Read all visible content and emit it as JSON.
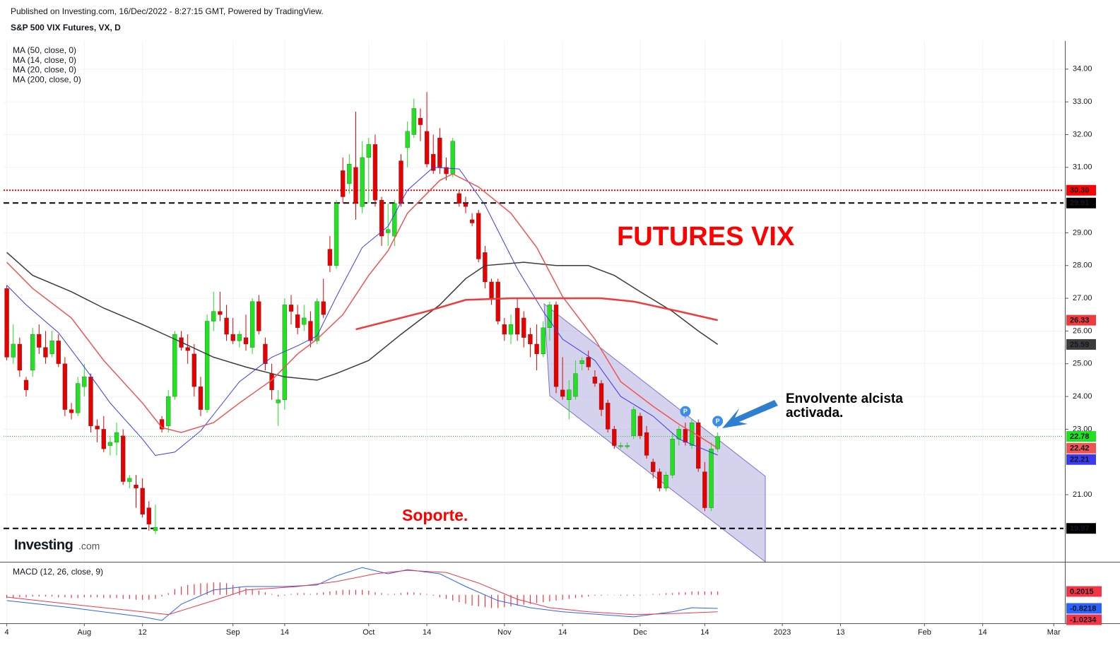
{
  "header": {
    "published": "Published on Investing.com, 16/Dec/2022 - 8:27:15 GMT, Powered by TradingView.",
    "logo": "Investing",
    "logo_suffix": ".com"
  },
  "chart_data": [
    {
      "type": "candlestick",
      "title": "S&P 500 VIX Futures, VX, D",
      "xlim": [
        -0.5,
        163.5
      ],
      "xticks": [
        {
          "value": 0,
          "label": "4"
        },
        {
          "value": 12,
          "label": "Aug"
        },
        {
          "value": 21,
          "label": "12"
        },
        {
          "value": 35,
          "label": "Sep"
        },
        {
          "value": 43,
          "label": "14"
        },
        {
          "value": 56,
          "label": "Oct"
        },
        {
          "value": 65,
          "label": "14"
        },
        {
          "value": 77,
          "label": "Nov"
        },
        {
          "value": 86,
          "label": "14"
        },
        {
          "value": 98,
          "label": "Dec"
        },
        {
          "value": 108,
          "label": "14"
        },
        {
          "value": 120,
          "label": "2023"
        },
        {
          "value": 129,
          "label": "13"
        },
        {
          "value": 142,
          "label": "Feb"
        },
        {
          "value": 151,
          "label": "14"
        },
        {
          "value": 162,
          "label": "Mar"
        }
      ],
      "ylim": [
        18.95,
        34.86
      ],
      "yticks": [
        {
          "value": 21,
          "label": "21.00"
        },
        {
          "value": 23,
          "label": "23.00"
        },
        {
          "value": 24,
          "label": "24.00"
        },
        {
          "value": 25,
          "label": "25.00"
        },
        {
          "value": 26,
          "label": "26.00"
        },
        {
          "value": 27,
          "label": "27.00"
        },
        {
          "value": 28,
          "label": "28.00"
        },
        {
          "value": 29,
          "label": "29.00"
        },
        {
          "value": 31,
          "label": "31.00"
        },
        {
          "value": 32,
          "label": "32.00"
        },
        {
          "value": 33,
          "label": "33.00"
        },
        {
          "value": 34,
          "label": "34.00"
        }
      ],
      "grid": true,
      "up_color": "#1ee31e",
      "down_color": "#e60000",
      "last_line_color": "#22bb22",
      "candles": {
        "open": [
          27.3,
          25.2,
          25.6,
          24.5,
          24.8,
          25.9,
          25.5,
          25.3,
          25.7,
          25.0,
          23.6,
          23.5,
          24.3,
          24.6,
          23.1,
          23.0,
          22.5,
          22.6,
          22.8,
          21.4,
          21.3,
          21.2,
          20.6,
          19.9,
          23.3,
          23.1,
          24.0,
          25.8,
          25.5,
          25.3,
          24.3,
          23.6,
          26.3,
          26.6,
          26.4,
          25.9,
          25.7,
          25.8,
          25.5,
          26.9,
          25.6,
          24.7,
          23.8,
          23.9,
          26.8,
          26.5,
          26.2,
          26.3,
          25.7,
          26.9,
          28.5,
          28.0,
          30.9,
          30.5,
          31.0,
          29.8,
          31.3,
          31.7,
          30.0,
          29.0,
          28.9,
          31.2,
          31.6,
          32.0,
          32.5,
          32.1,
          31.4,
          31.9,
          31.0,
          30.8,
          30.2,
          29.9,
          29.4,
          29.6,
          28.4,
          27.5,
          27.5,
          26.2,
          25.9,
          26.7,
          26.4,
          25.9,
          25.6,
          25.3,
          26.1,
          26.8,
          24.2,
          23.9,
          24.0,
          25.0,
          25.2,
          24.6,
          24.4,
          23.8,
          23.0,
          22.5,
          22.5,
          22.8,
          23.4,
          22.9,
          22.0,
          21.7,
          21.2,
          21.6,
          22.7,
          23.0,
          22.5,
          23.2,
          21.7,
          20.6,
          22.4
        ],
        "high": [
          27.4,
          26.2,
          25.8,
          24.6,
          26.1,
          26.2,
          26.0,
          26.0,
          25.9,
          25.2,
          23.8,
          24.6,
          25.0,
          24.7,
          23.3,
          23.4,
          22.8,
          23.2,
          23.0,
          21.6,
          21.6,
          21.5,
          20.8,
          20.7,
          23.4,
          24.2,
          26.0,
          26.0,
          25.9,
          25.6,
          24.6,
          26.5,
          27.2,
          27.2,
          26.8,
          26.4,
          26.0,
          26.5,
          27.0,
          27.1,
          25.8,
          25.0,
          24.2,
          27.0,
          27.1,
          26.8,
          26.8,
          26.6,
          27.0,
          27.6,
          28.9,
          30.0,
          31.3,
          31.4,
          32.7,
          31.8,
          31.9,
          32.0,
          30.1,
          29.9,
          30.0,
          31.4,
          32.4,
          33.1,
          32.8,
          33.3,
          32.0,
          32.2,
          31.3,
          31.9,
          30.3,
          30.1,
          29.6,
          29.7,
          28.6,
          27.6,
          27.6,
          26.4,
          26.5,
          27.0,
          26.6,
          26.1,
          26.2,
          26.3,
          26.9,
          26.9,
          25.2,
          24.5,
          25.1,
          25.2,
          25.4,
          24.8,
          24.5,
          23.9,
          23.1,
          22.6,
          22.6,
          23.7,
          23.5,
          23.1,
          22.1,
          21.8,
          21.7,
          22.9,
          23.1,
          23.2,
          23.3,
          23.3,
          22.0,
          22.6,
          22.9
        ],
        "low": [
          25.1,
          25.0,
          24.6,
          24.0,
          24.6,
          25.3,
          25.0,
          25.2,
          24.9,
          23.4,
          23.3,
          23.4,
          24.0,
          22.9,
          22.6,
          22.3,
          22.2,
          22.2,
          21.3,
          21.2,
          20.6,
          20.3,
          19.9,
          19.8,
          22.9,
          22.9,
          23.9,
          25.4,
          25.0,
          24.0,
          23.4,
          23.5,
          26.0,
          26.3,
          25.7,
          25.6,
          25.5,
          25.4,
          25.3,
          25.9,
          24.8,
          23.9,
          23.1,
          23.6,
          26.2,
          25.9,
          26.0,
          25.5,
          25.6,
          26.4,
          27.8,
          27.9,
          29.9,
          30.2,
          29.4,
          29.6,
          29.9,
          29.8,
          28.6,
          28.6,
          28.6,
          29.8,
          31.0,
          31.9,
          31.8,
          31.0,
          30.8,
          30.8,
          30.6,
          30.7,
          29.8,
          29.6,
          29.2,
          28.1,
          27.3,
          26.8,
          26.2,
          25.7,
          25.6,
          25.7,
          25.5,
          25.2,
          24.8,
          25.2,
          25.7,
          24.1,
          23.9,
          23.3,
          23.9,
          24.8,
          24.8,
          24.3,
          23.4,
          22.9,
          22.4,
          22.4,
          22.4,
          22.7,
          22.7,
          22.1,
          21.5,
          21.1,
          21.1,
          21.5,
          22.5,
          22.5,
          22.4,
          21.7,
          20.5,
          20.5,
          22.3
        ],
        "close": [
          25.2,
          25.6,
          24.8,
          24.2,
          25.9,
          25.5,
          25.2,
          25.7,
          25.0,
          23.6,
          23.5,
          24.4,
          24.6,
          23.1,
          23.0,
          22.4,
          22.6,
          22.9,
          21.4,
          21.5,
          21.2,
          20.4,
          20.1,
          20.0,
          23.0,
          24.0,
          25.9,
          25.5,
          25.4,
          24.3,
          23.6,
          26.3,
          26.6,
          26.5,
          25.9,
          25.7,
          25.9,
          25.6,
          26.9,
          26.0,
          25.0,
          24.2,
          23.9,
          26.8,
          26.6,
          26.1,
          26.4,
          25.7,
          26.9,
          26.5,
          28.0,
          29.9,
          30.1,
          31.1,
          29.9,
          31.3,
          31.7,
          30.0,
          28.9,
          29.1,
          29.9,
          29.9,
          32.1,
          32.8,
          32.3,
          31.1,
          30.9,
          31.0,
          30.8,
          31.8,
          29.9,
          29.8,
          29.3,
          28.2,
          27.5,
          27.0,
          26.3,
          25.9,
          26.2,
          25.9,
          25.8,
          25.6,
          25.3,
          26.1,
          26.8,
          24.3,
          24.0,
          24.2,
          24.7,
          25.1,
          24.9,
          24.4,
          23.6,
          23.0,
          22.5,
          22.5,
          22.5,
          23.6,
          22.8,
          22.2,
          21.7,
          21.2,
          21.6,
          22.7,
          23.0,
          22.6,
          23.2,
          21.8,
          20.6,
          22.4,
          22.78
        ]
      },
      "series": [
        {
          "name": "MA (50, close, 0)",
          "color": "#3c3c3c",
          "width": 1.5,
          "x": [
            0,
            4,
            10,
            15,
            21,
            26,
            32,
            37,
            43,
            48,
            51,
            56,
            61,
            67,
            71,
            74,
            80,
            85,
            90,
            94,
            98,
            103,
            107,
            110
          ],
          "values": [
            28.4,
            27.7,
            27.2,
            26.7,
            26.2,
            25.75,
            25.2,
            24.9,
            24.6,
            24.5,
            24.7,
            25.1,
            25.9,
            26.8,
            27.6,
            28.0,
            28.1,
            28.0,
            28.0,
            27.7,
            27.2,
            26.6,
            26.0,
            25.59
          ]
        },
        {
          "name": "MA (14, close, 0)",
          "color": "#3a3af0",
          "width": 1,
          "x": [
            0,
            3,
            8,
            12,
            16,
            21,
            23,
            26,
            30,
            33,
            36,
            41,
            45,
            48,
            51,
            55,
            59,
            62,
            66,
            70,
            74,
            79,
            83,
            86,
            91,
            95,
            100,
            104,
            110
          ],
          "values": [
            27.4,
            26.8,
            25.95,
            24.9,
            23.8,
            22.7,
            22.2,
            22.3,
            22.95,
            23.7,
            24.45,
            25.2,
            25.55,
            25.85,
            27.05,
            28.55,
            29.2,
            30.3,
            31.0,
            30.95,
            29.85,
            27.9,
            26.6,
            25.75,
            25.1,
            24.0,
            23.4,
            22.7,
            22.21
          ]
        },
        {
          "name": "MA (20, close, 0)",
          "color": "#f05454",
          "width": 1.5,
          "x": [
            0,
            4,
            10,
            15,
            21,
            24,
            27,
            32,
            36,
            41,
            45,
            48,
            52,
            56,
            59,
            62,
            67,
            69,
            73,
            78,
            82,
            86,
            91,
            95,
            100,
            104,
            107,
            110
          ],
          "values": [
            28.1,
            27.3,
            26.4,
            25.1,
            23.8,
            23.05,
            22.9,
            23.2,
            23.8,
            24.5,
            25.3,
            25.75,
            26.5,
            27.7,
            28.45,
            29.6,
            30.6,
            30.8,
            30.4,
            29.6,
            28.55,
            27.05,
            25.75,
            24.45,
            23.7,
            23.15,
            22.8,
            22.42
          ]
        },
        {
          "name": "MA (200, close, 0)",
          "color": "#ee3b3b",
          "width": 2.5,
          "x": [
            54,
            65,
            71,
            78,
            86,
            92,
            97,
            104,
            110
          ],
          "values": [
            26.05,
            26.6,
            26.95,
            27.0,
            27.0,
            27.0,
            26.9,
            26.6,
            26.33
          ]
        }
      ],
      "hlines": [
        {
          "value": 30.3,
          "label": "30.30",
          "color": "#ff0000",
          "style": "dotted"
        },
        {
          "value": 29.91,
          "label": "29.91",
          "color": "#000000",
          "style": "dashed"
        },
        {
          "value": 19.97,
          "label": "19.97",
          "color": "#000000",
          "style": "dashed"
        }
      ],
      "flags": [
        {
          "label": "P",
          "x": 105
        },
        {
          "label": "P",
          "x": 110
        }
      ],
      "annotations": {
        "main": {
          "text": "FUTURES VIX",
          "color": "#ff0000"
        },
        "support": {
          "text": "Soporte.",
          "color": "#ff0000"
        },
        "note": {
          "text": [
            "Envolvente alcista",
            "activada."
          ],
          "color": "#000000"
        }
      }
    },
    {
      "type": "macd",
      "title": "MACD (12, 26, close, 9)",
      "ylim": [
        -1.72,
        1.91
      ],
      "histogram": {
        "color": "#f23645",
        "values": [
          -0.2,
          -0.2,
          -0.15,
          -0.15,
          -0.1,
          -0.1,
          -0.1,
          -0.1,
          -0.15,
          -0.15,
          -0.2,
          -0.2,
          -0.15,
          -0.15,
          -0.15,
          -0.2,
          -0.2,
          -0.2,
          -0.25,
          -0.25,
          -0.3,
          -0.3,
          -0.3,
          -0.25,
          -0.1,
          0.1,
          0.35,
          0.5,
          0.6,
          0.65,
          0.7,
          0.7,
          0.75,
          0.75,
          0.7,
          0.6,
          0.5,
          0.4,
          0.35,
          0.25,
          0.15,
          0.05,
          -0.1,
          -0.05,
          0.05,
          0.1,
          0.1,
          0.05,
          0.1,
          0.15,
          0.2,
          0.25,
          0.3,
          0.3,
          0.3,
          0.3,
          0.25,
          0.15,
          0.1,
          0.05,
          0.05,
          0.1,
          0.15,
          0.15,
          0.1,
          0.05,
          -0.05,
          -0.15,
          -0.25,
          -0.35,
          -0.45,
          -0.55,
          -0.65,
          -0.7,
          -0.75,
          -0.8,
          -0.8,
          -0.75,
          -0.7,
          -0.65,
          -0.6,
          -0.55,
          -0.5,
          -0.45,
          -0.4,
          -0.35,
          -0.3,
          -0.25,
          -0.2,
          -0.15,
          -0.1,
          -0.05,
          -0.05,
          0,
          0,
          -0.05,
          -0.05,
          -0.05,
          -0.05,
          0,
          0.05,
          0.05,
          0.1,
          0.1,
          0.15,
          0.15,
          0.2,
          0.2,
          0.2,
          0.2,
          0.2015
        ]
      },
      "series": [
        {
          "color": "#2962ff",
          "x": [
            0,
            10,
            21,
            24,
            27,
            32,
            37,
            43,
            48,
            51,
            55,
            59,
            62,
            67,
            71,
            76,
            81,
            86,
            92,
            97,
            103,
            106,
            110
          ],
          "values": [
            -0.35,
            -0.78,
            -1.33,
            -1.55,
            -0.57,
            0.29,
            0.5,
            0.5,
            0.59,
            1.14,
            1.65,
            1.27,
            1.52,
            1.27,
            0.5,
            -0.35,
            -0.78,
            -1.03,
            -1.2,
            -1.33,
            -1.03,
            -0.78,
            -0.8218
          ]
        },
        {
          "color": "#f23645",
          "x": [
            0,
            10,
            21,
            25,
            32,
            37,
            45,
            51,
            57,
            62,
            68,
            73,
            79,
            84,
            90,
            97,
            104,
            110
          ],
          "values": [
            -0.14,
            -0.57,
            -1.03,
            -1.2,
            -0.35,
            0.29,
            0.5,
            0.8,
            1.27,
            1.48,
            1.35,
            0.71,
            -0.27,
            -0.78,
            -1.03,
            -1.2,
            -1.12,
            -1.0234
          ]
        }
      ]
    }
  ]
}
